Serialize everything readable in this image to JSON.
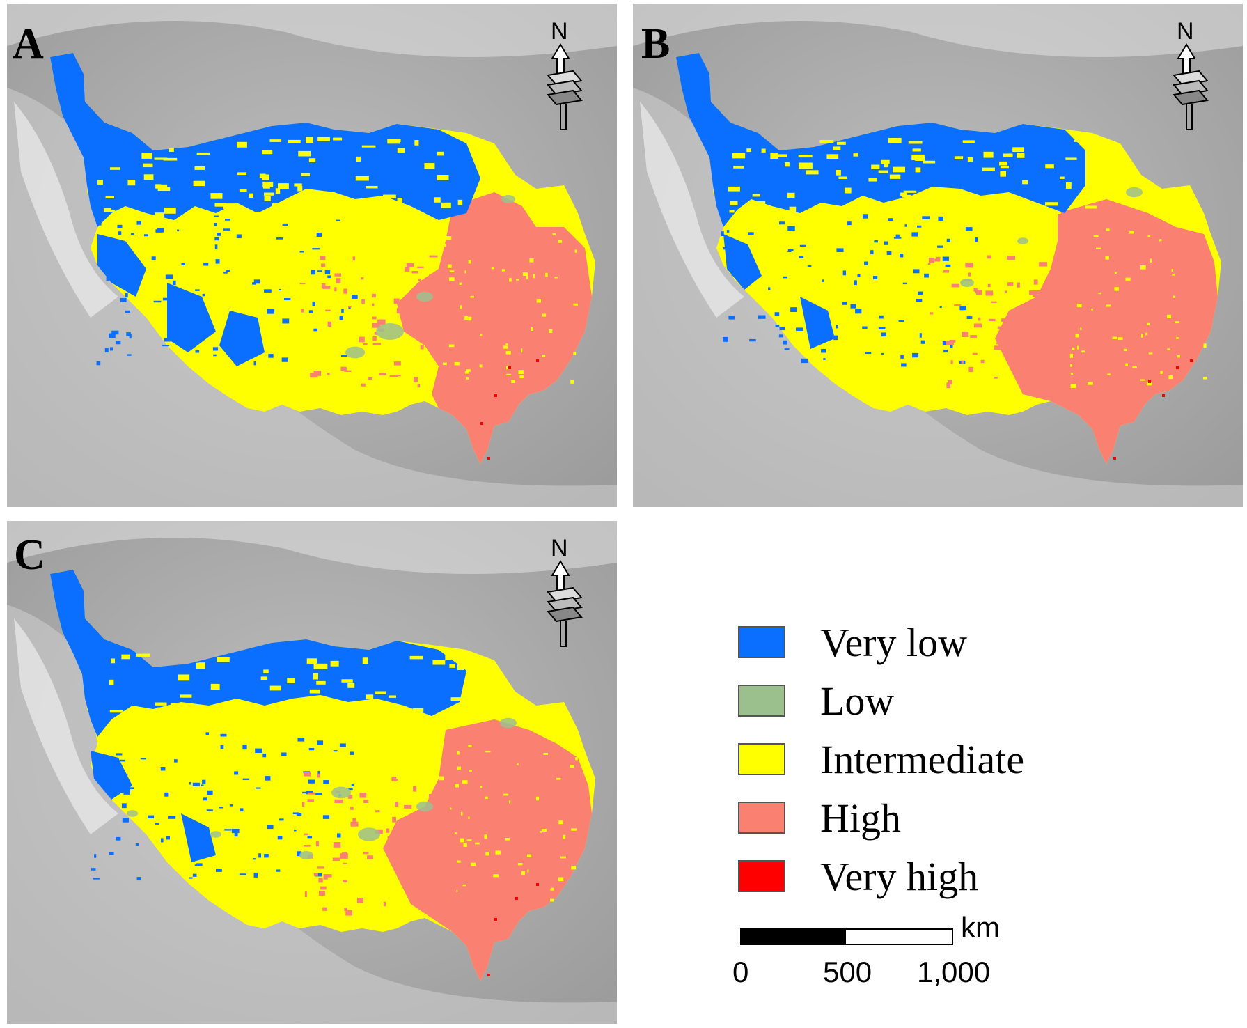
{
  "panels": [
    {
      "label": "A",
      "variant": "A"
    },
    {
      "label": "B",
      "variant": "B"
    },
    {
      "label": "C",
      "variant": "C"
    }
  ],
  "north_arrow": {
    "letter": "N",
    "icon": "north-arrow-icon"
  },
  "legend": {
    "items": [
      {
        "label": "Very low",
        "color": "#0a6eff"
      },
      {
        "label": "Low",
        "color": "#9cbf8e"
      },
      {
        "label": "Intermediate",
        "color": "#ffff00"
      },
      {
        "label": "High",
        "color": "#fa8072"
      },
      {
        "label": "Very high",
        "color": "#ff0000"
      }
    ]
  },
  "scale_bar": {
    "unit": "km",
    "ticks": [
      "0",
      "500",
      "1,000"
    ]
  }
}
